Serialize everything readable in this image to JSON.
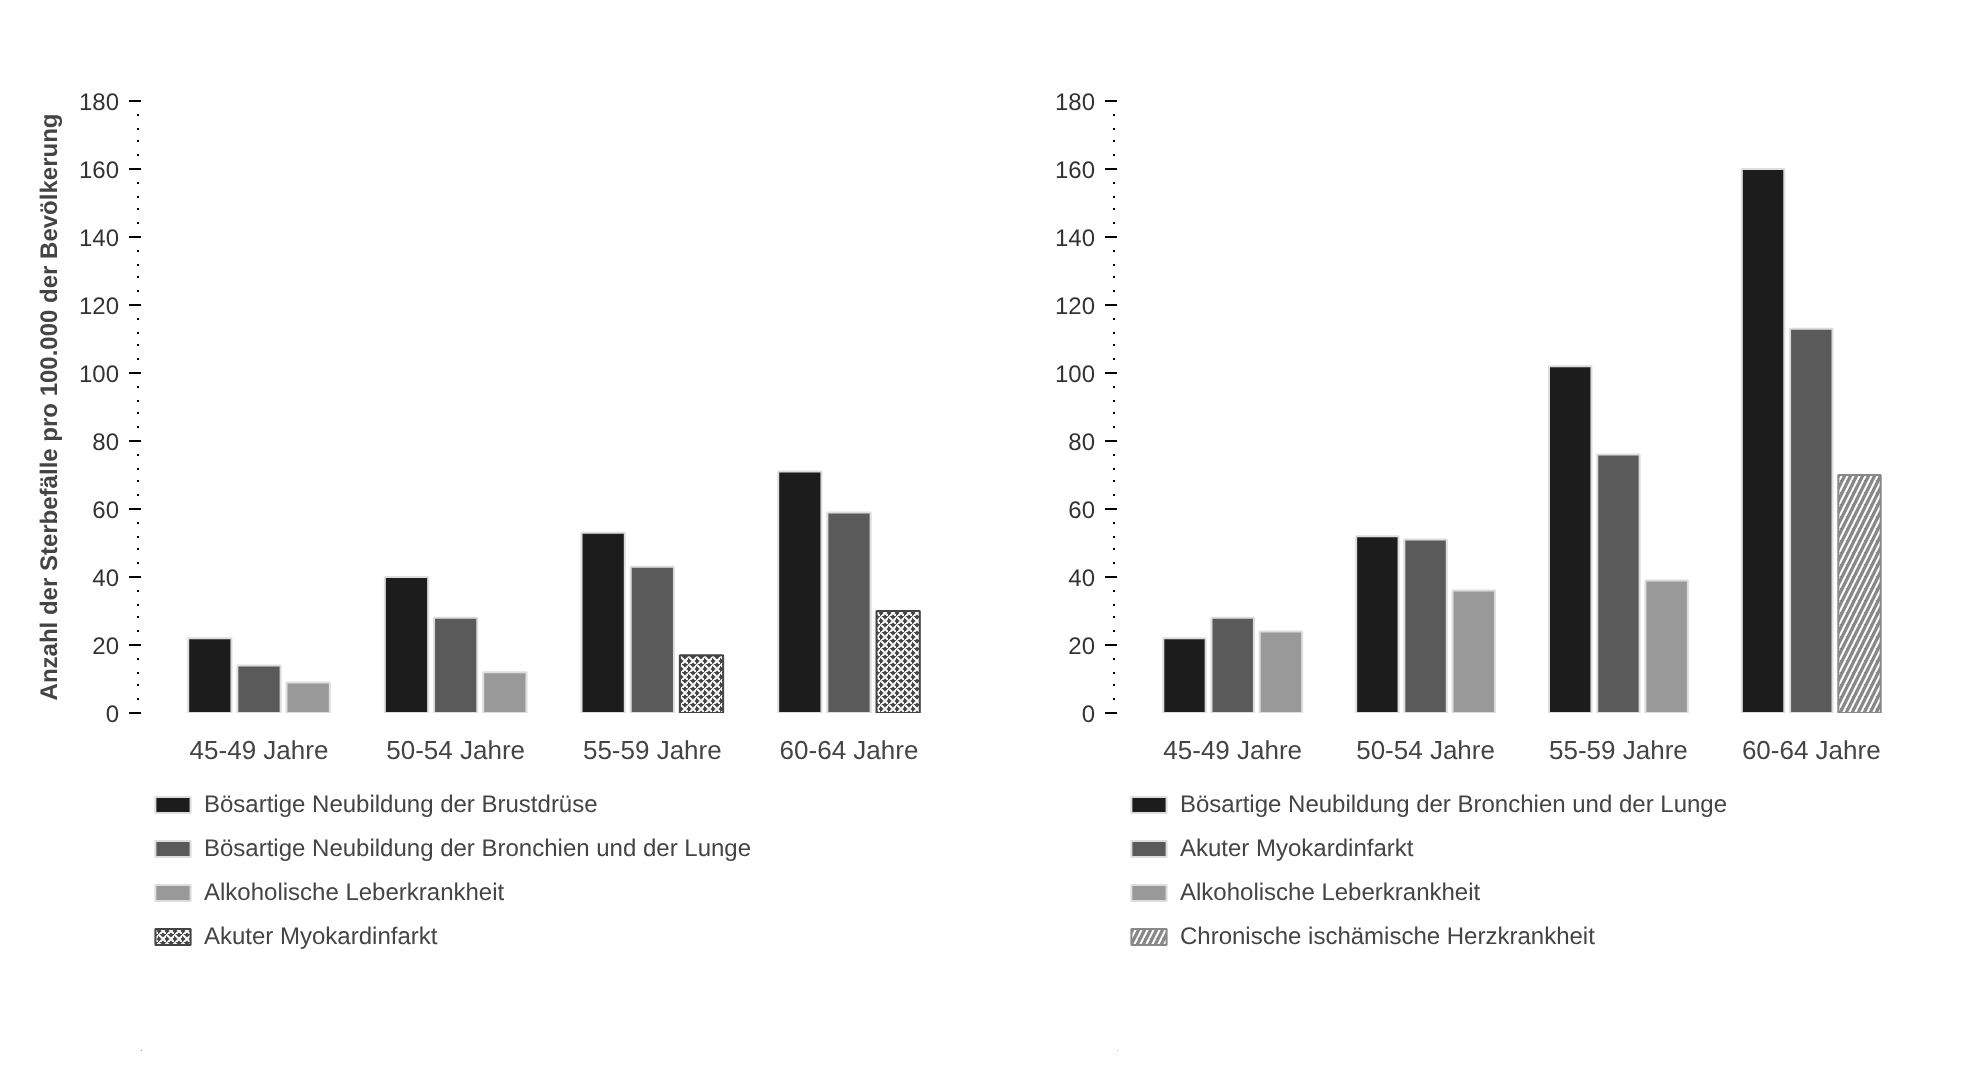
{
  "chart_data": [
    {
      "type": "bar",
      "ylabel": "Anzahl der Sterbefälle pro 100.000 der Bevölkerung",
      "categories": [
        "45-49 Jahre",
        "50-54 Jahre",
        "55-59 Jahre",
        "60-64 Jahre"
      ],
      "ylim": [
        0,
        180
      ],
      "yticks": [
        0,
        20,
        40,
        60,
        80,
        100,
        120,
        140,
        160,
        180
      ],
      "grid": false,
      "legend": "bottom",
      "series": [
        {
          "name": "Bösartige Neubildung der Brustdrüse",
          "color": "#1c1c1c",
          "values": [
            22,
            40,
            53,
            71
          ]
        },
        {
          "name": "Bösartige Neubildung der Bronchien und der Lunge",
          "color": "#5a5a5a",
          "values": [
            14,
            28,
            43,
            59
          ]
        },
        {
          "name": "Alkoholische Leberkrankheit",
          "color": "#999999",
          "values": [
            9,
            12,
            null,
            null
          ]
        },
        {
          "name": "Akuter Myokardinfarkt",
          "color": "#444444",
          "values": [
            null,
            null,
            17,
            30
          ]
        }
      ]
    },
    {
      "type": "bar",
      "categories": [
        "45-49 Jahre",
        "50-54 Jahre",
        "55-59 Jahre",
        "60-64 Jahre"
      ],
      "ylim": [
        0,
        180
      ],
      "yticks": [
        0,
        20,
        40,
        60,
        80,
        100,
        120,
        140,
        160,
        180
      ],
      "grid": false,
      "legend": "bottom",
      "series": [
        {
          "name": "Bösartige Neubildung der Bronchien und der Lunge",
          "color": "#1c1c1c",
          "values": [
            22,
            52,
            102,
            160
          ]
        },
        {
          "name": "Akuter Myokardinfarkt",
          "color": "#5a5a5a",
          "values": [
            28,
            51,
            76,
            113
          ]
        },
        {
          "name": "Alkoholische Leberkrankheit",
          "color": "#999999",
          "values": [
            24,
            36,
            39,
            null
          ]
        },
        {
          "name": "Chronische ischämische Herzkrankheit",
          "color": "#888888",
          "values": [
            null,
            null,
            null,
            70
          ]
        }
      ]
    }
  ]
}
